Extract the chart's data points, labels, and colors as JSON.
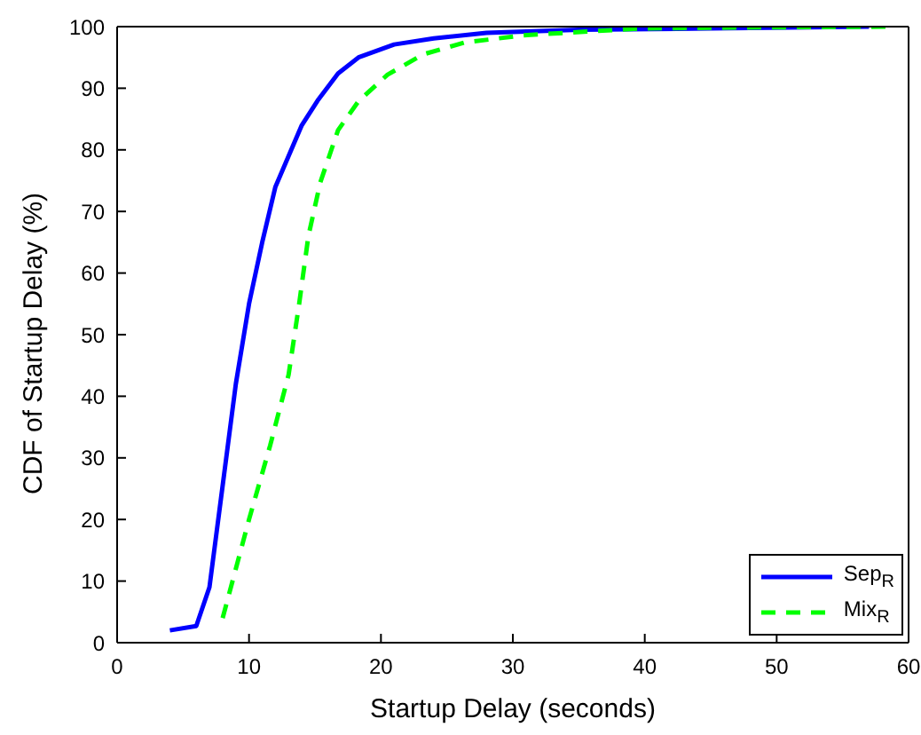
{
  "chart_data": {
    "type": "line",
    "xlabel": "Startup Delay (seconds)",
    "ylabel": "CDF of Startup Delay (%)",
    "xlim": [
      0,
      60
    ],
    "xticks": [
      0,
      10,
      20,
      30,
      40,
      50,
      60
    ],
    "ylim": [
      0,
      100
    ],
    "yticks": [
      0,
      10,
      20,
      30,
      40,
      50,
      60,
      70,
      80,
      90,
      100
    ],
    "grid": false,
    "legend": "bottom right",
    "marker": "none",
    "series": [
      {
        "name": "Sep$_{R}$",
        "color": "#0000ff",
        "line_style": "solid",
        "x": [
          4,
          6,
          7,
          9,
          10,
          11,
          12,
          13,
          14,
          15.2,
          16.75,
          18.3,
          21,
          24,
          28,
          35,
          45,
          57
        ],
        "values": [
          2,
          2.7,
          9,
          42,
          55,
          65,
          74,
          79,
          84,
          88,
          92.4,
          95,
          97.1,
          98.1,
          99,
          99.5,
          99.7,
          100
        ]
      },
      {
        "name": "Mix$_{R}$",
        "color": "#00ff00",
        "line_style": "dashed",
        "x": [
          8,
          10,
          11.6,
          13,
          13.8,
          14.5,
          15.4,
          16.75,
          18.3,
          20.5,
          23.2,
          26.3,
          30.8,
          39.7,
          50,
          59
        ],
        "values": [
          4,
          20,
          32,
          43.5,
          55,
          66,
          74.7,
          83.2,
          87.9,
          92.2,
          95.5,
          97.4,
          98.6,
          99.7,
          99.9,
          100
        ]
      }
    ]
  }
}
